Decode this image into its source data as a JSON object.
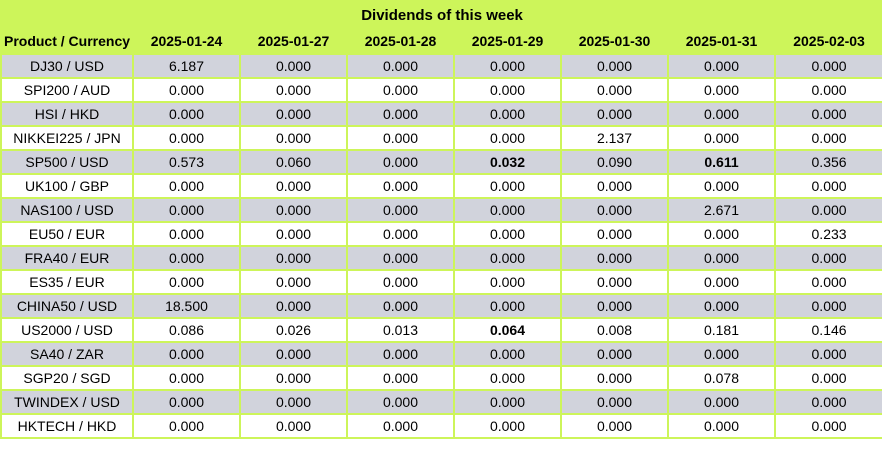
{
  "title": "Dividends of this week",
  "colors": {
    "header_green": "#cdf55a",
    "row_alt_gray": "#d1d3dc",
    "row_white": "#ffffff",
    "text": "#000000"
  },
  "chart_data": {
    "type": "table",
    "title": "Dividends of this week",
    "columns": [
      "Product / Currency",
      "2025-01-24",
      "2025-01-27",
      "2025-01-28",
      "2025-01-29",
      "2025-01-30",
      "2025-01-31",
      "2025-02-03"
    ],
    "rows": [
      {
        "product": "DJ30 / USD",
        "values": [
          "6.187",
          "0.000",
          "0.000",
          "0.000",
          "0.000",
          "0.000",
          "0.000"
        ],
        "bold_cols": []
      },
      {
        "product": "SPI200 / AUD",
        "values": [
          "0.000",
          "0.000",
          "0.000",
          "0.000",
          "0.000",
          "0.000",
          "0.000"
        ],
        "bold_cols": []
      },
      {
        "product": "HSI / HKD",
        "values": [
          "0.000",
          "0.000",
          "0.000",
          "0.000",
          "0.000",
          "0.000",
          "0.000"
        ],
        "bold_cols": []
      },
      {
        "product": "NIKKEI225 / JPN",
        "values": [
          "0.000",
          "0.000",
          "0.000",
          "0.000",
          "2.137",
          "0.000",
          "0.000"
        ],
        "bold_cols": []
      },
      {
        "product": "SP500 / USD",
        "values": [
          "0.573",
          "0.060",
          "0.000",
          "0.032",
          "0.090",
          "0.611",
          "0.356"
        ],
        "bold_cols": [
          3,
          5
        ]
      },
      {
        "product": "UK100 / GBP",
        "values": [
          "0.000",
          "0.000",
          "0.000",
          "0.000",
          "0.000",
          "0.000",
          "0.000"
        ],
        "bold_cols": []
      },
      {
        "product": "NAS100 / USD",
        "values": [
          "0.000",
          "0.000",
          "0.000",
          "0.000",
          "0.000",
          "2.671",
          "0.000"
        ],
        "bold_cols": []
      },
      {
        "product": "EU50 / EUR",
        "values": [
          "0.000",
          "0.000",
          "0.000",
          "0.000",
          "0.000",
          "0.000",
          "0.233"
        ],
        "bold_cols": []
      },
      {
        "product": "FRA40 / EUR",
        "values": [
          "0.000",
          "0.000",
          "0.000",
          "0.000",
          "0.000",
          "0.000",
          "0.000"
        ],
        "bold_cols": []
      },
      {
        "product": "ES35 / EUR",
        "values": [
          "0.000",
          "0.000",
          "0.000",
          "0.000",
          "0.000",
          "0.000",
          "0.000"
        ],
        "bold_cols": []
      },
      {
        "product": "CHINA50 / USD",
        "values": [
          "18.500",
          "0.000",
          "0.000",
          "0.000",
          "0.000",
          "0.000",
          "0.000"
        ],
        "bold_cols": []
      },
      {
        "product": "US2000 / USD",
        "values": [
          "0.086",
          "0.026",
          "0.013",
          "0.064",
          "0.008",
          "0.181",
          "0.146"
        ],
        "bold_cols": [
          3
        ]
      },
      {
        "product": "SA40 / ZAR",
        "values": [
          "0.000",
          "0.000",
          "0.000",
          "0.000",
          "0.000",
          "0.000",
          "0.000"
        ],
        "bold_cols": []
      },
      {
        "product": "SGP20 / SGD",
        "values": [
          "0.000",
          "0.000",
          "0.000",
          "0.000",
          "0.000",
          "0.078",
          "0.000"
        ],
        "bold_cols": []
      },
      {
        "product": "TWINDEX / USD",
        "values": [
          "0.000",
          "0.000",
          "0.000",
          "0.000",
          "0.000",
          "0.000",
          "0.000"
        ],
        "bold_cols": []
      },
      {
        "product": "HKTECH / HKD",
        "values": [
          "0.000",
          "0.000",
          "0.000",
          "0.000",
          "0.000",
          "0.000",
          "0.000"
        ],
        "bold_cols": []
      }
    ]
  }
}
